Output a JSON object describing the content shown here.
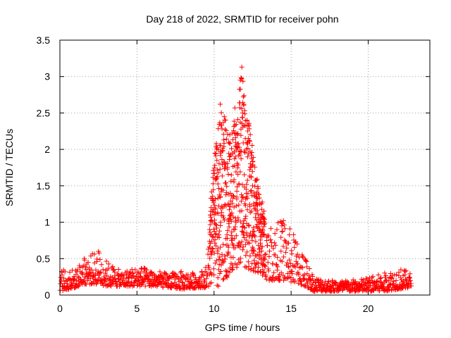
{
  "chart_data": {
    "type": "scatter",
    "title": "Day 218 of 2022, SRMTID for receiver pohn",
    "xlabel": "GPS time / hours",
    "ylabel": "SRMTID / TECUs",
    "xlim": [
      0,
      24
    ],
    "ylim": [
      0,
      3.5
    ],
    "xticks": [
      0,
      5,
      10,
      15,
      20
    ],
    "xtick_labels": [
      "0",
      "5",
      "10",
      "15",
      "20"
    ],
    "yticks": [
      0,
      0.5,
      1,
      1.5,
      2,
      2.5,
      3,
      3.5
    ],
    "ytick_labels": [
      "0",
      "0.5",
      "1",
      "1.5",
      "2",
      "2.5",
      "3",
      "3.5"
    ],
    "grid": true,
    "series": [
      {
        "name": "SRMTID",
        "marker": "+",
        "color": "#ff0000",
        "envelope_note": "Dense observations from 0 to ~22.8 h. Typical baseline ~0.2 TECU with short spikes; strong enhancement between ~9.8 h and ~14 h peaking near 3.1 TECU at ~11.8 h; decay to ~0.1-0.2 TECU after ~16 h.",
        "envelope": [
          {
            "x": 0.0,
            "low": 0.05,
            "high": 0.38
          },
          {
            "x": 1.0,
            "low": 0.1,
            "high": 0.35
          },
          {
            "x": 1.5,
            "low": 0.15,
            "high": 0.5
          },
          {
            "x": 2.5,
            "low": 0.15,
            "high": 0.62
          },
          {
            "x": 3.0,
            "low": 0.12,
            "high": 0.48
          },
          {
            "x": 4.0,
            "low": 0.12,
            "high": 0.32
          },
          {
            "x": 5.0,
            "low": 0.12,
            "high": 0.4
          },
          {
            "x": 6.0,
            "low": 0.12,
            "high": 0.35
          },
          {
            "x": 7.0,
            "low": 0.1,
            "high": 0.3
          },
          {
            "x": 8.0,
            "low": 0.08,
            "high": 0.33
          },
          {
            "x": 9.0,
            "low": 0.1,
            "high": 0.3
          },
          {
            "x": 9.5,
            "low": 0.1,
            "high": 0.4
          },
          {
            "x": 10.0,
            "low": 0.1,
            "high": 1.9
          },
          {
            "x": 10.5,
            "low": 0.1,
            "high": 2.6
          },
          {
            "x": 11.0,
            "low": 0.3,
            "high": 2.2
          },
          {
            "x": 11.5,
            "low": 0.35,
            "high": 2.6
          },
          {
            "x": 11.8,
            "low": 0.4,
            "high": 3.13
          },
          {
            "x": 12.3,
            "low": 0.3,
            "high": 2.3
          },
          {
            "x": 12.8,
            "low": 0.3,
            "high": 1.6
          },
          {
            "x": 13.5,
            "low": 0.2,
            "high": 0.95
          },
          {
            "x": 14.5,
            "low": 0.2,
            "high": 1.05
          },
          {
            "x": 15.5,
            "low": 0.15,
            "high": 0.75
          },
          {
            "x": 16.5,
            "low": 0.05,
            "high": 0.25
          },
          {
            "x": 18.0,
            "low": 0.05,
            "high": 0.2
          },
          {
            "x": 19.5,
            "low": 0.05,
            "high": 0.22
          },
          {
            "x": 21.0,
            "low": 0.05,
            "high": 0.3
          },
          {
            "x": 22.0,
            "low": 0.08,
            "high": 0.38
          },
          {
            "x": 22.8,
            "low": 0.1,
            "high": 0.3
          }
        ],
        "highlight_points": [
          {
            "x": 11.8,
            "y": 3.13
          },
          {
            "x": 11.7,
            "y": 2.95
          },
          {
            "x": 11.9,
            "y": 2.72
          },
          {
            "x": 10.4,
            "y": 2.62
          },
          {
            "x": 11.35,
            "y": 2.57
          },
          {
            "x": 11.85,
            "y": 2.5
          },
          {
            "x": 10.45,
            "y": 2.33
          },
          {
            "x": 12.15,
            "y": 2.32
          },
          {
            "x": 10.05,
            "y": 1.78
          },
          {
            "x": 10.1,
            "y": 1.58
          },
          {
            "x": 12.5,
            "y": 1.5
          },
          {
            "x": 14.5,
            "y": 1.02
          },
          {
            "x": 14.4,
            "y": 0.95
          },
          {
            "x": 2.5,
            "y": 0.6
          },
          {
            "x": 1.6,
            "y": 0.48
          }
        ]
      }
    ]
  }
}
